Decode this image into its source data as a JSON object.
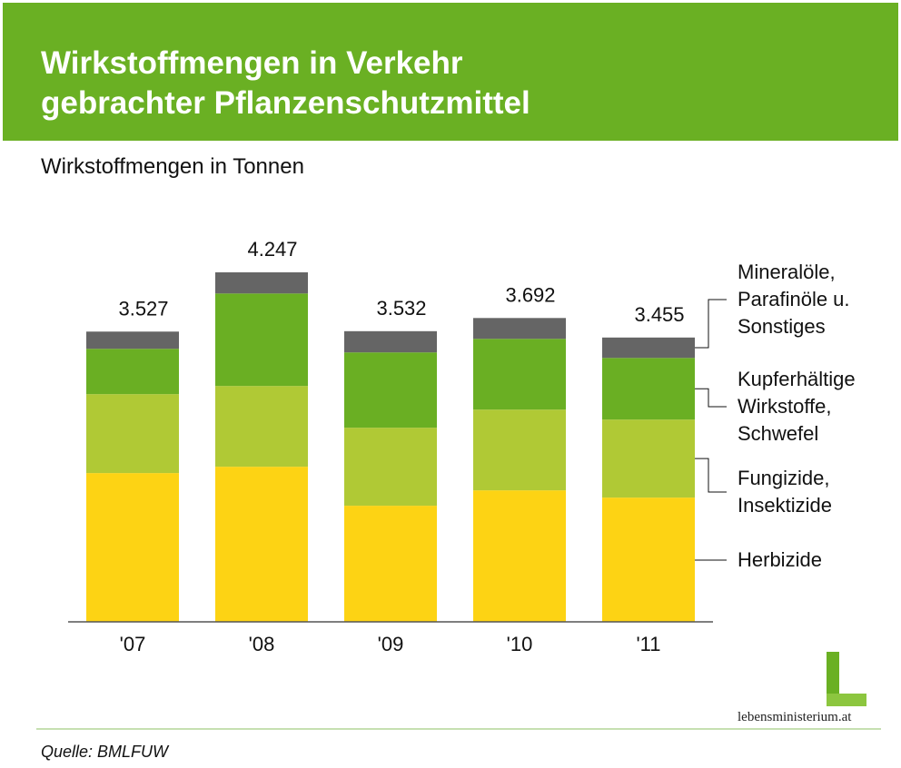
{
  "chart_data": {
    "type": "stacked_bar",
    "title": "Wirkstoffmengen in Verkehr gebrachter Pflanzenschutzmittel",
    "subtitle": "Wirkstoffmengen in Tonnen",
    "source": "Quelle: BMLFUW",
    "logo_text": "lebensministerium.at",
    "categories": [
      "'07",
      "'08",
      "'09",
      "'10",
      "'11"
    ],
    "ylim": [
      0,
      4600
    ],
    "series": [
      {
        "name": "Herbizide",
        "color": "#fdd314",
        "values": [
          1808,
          1885,
          1411,
          1598,
          1510
        ]
      },
      {
        "name": "Fungizide, Insektizide",
        "color": "#b0c935",
        "values": [
          959,
          981,
          948,
          981,
          948
        ]
      },
      {
        "name": "Kupferhältige Wirkstoffe, Schwefel",
        "color": "#6aaf23",
        "values": [
          551,
          1124,
          915,
          860,
          749
        ]
      },
      {
        "name": "Mineralöle, Parafinöle u. Sonstiges",
        "color": "#656565",
        "values": [
          209,
          257,
          258,
          253,
          248
        ]
      }
    ],
    "totals": {
      "values": [
        3527,
        4247,
        3532,
        3692,
        3455
      ],
      "value_labels": [
        "3.527",
        "4.247",
        "3.532",
        "3.692",
        "3.455"
      ]
    }
  }
}
